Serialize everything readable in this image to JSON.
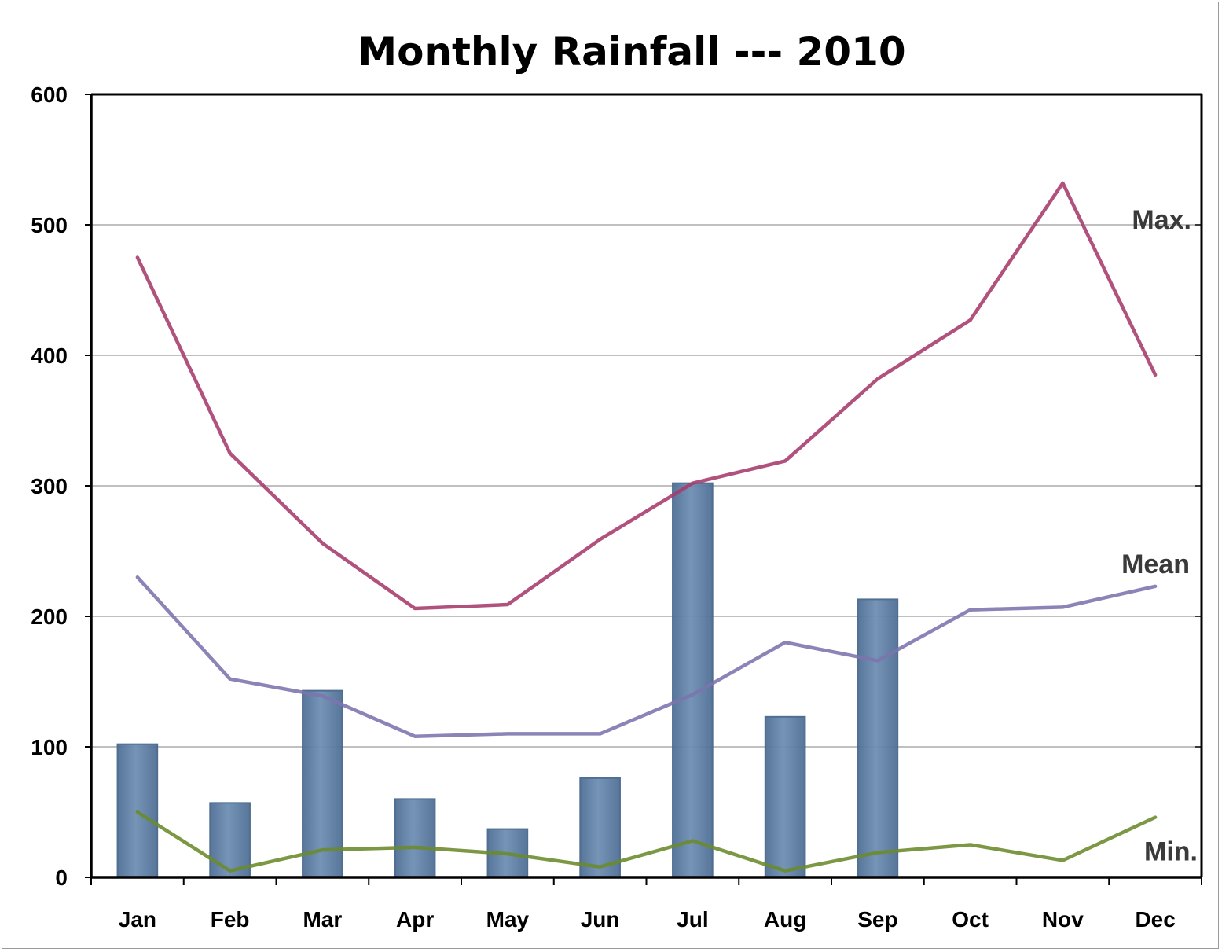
{
  "chart_data": {
    "type": "bar",
    "title": "Monthly Rainfall --- 2010",
    "categories": [
      "Jan",
      "Feb",
      "Mar",
      "Apr",
      "May",
      "Jun",
      "Jul",
      "Aug",
      "Sep",
      "Oct",
      "Nov",
      "Dec"
    ],
    "ylim": [
      0,
      600
    ],
    "yticks": [
      "0",
      "100",
      "200",
      "300",
      "400",
      "500",
      "600"
    ],
    "grid": true,
    "bars": {
      "color": "#5f7fa3",
      "values": [
        102,
        57,
        143,
        60,
        37,
        76,
        302,
        123,
        213,
        null,
        null,
        null
      ]
    },
    "lines": [
      {
        "name": "Max.",
        "color": "#a63a6c",
        "values": [
          475,
          325,
          256,
          206,
          209,
          259,
          302,
          319,
          382,
          427,
          532,
          385
        ]
      },
      {
        "name": "Mean",
        "color": "#7b74ad",
        "values": [
          230,
          152,
          139,
          108,
          110,
          110,
          140,
          180,
          166,
          205,
          207,
          223
        ]
      },
      {
        "name": "Min.",
        "color": "#6b8a2a",
        "values": [
          50,
          5,
          21,
          23,
          18,
          8,
          28,
          5,
          19,
          25,
          13,
          46
        ]
      }
    ]
  }
}
